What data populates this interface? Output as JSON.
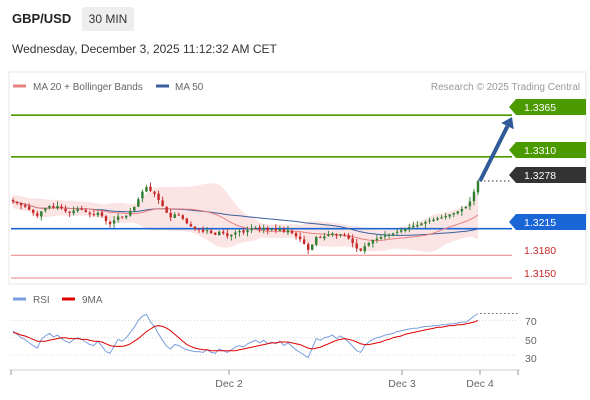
{
  "header": {
    "symbol": "GBP/USD",
    "timeframe": "30 MIN",
    "datetime": "Wednesday, December 3, 2025 11:12:32 AM CET",
    "credit": "Research © 2025 Trading Central"
  },
  "legend": {
    "ma20_bb": "MA 20 + Bollinger Bands",
    "ma50": "MA 50",
    "rsi": "RSI",
    "ma9": "9MA"
  },
  "colors": {
    "bollinger_fill": "#fbe4e4",
    "ma20": "#e88080",
    "ma50": "#3a5f9e",
    "bull_candle": "#2e7d32",
    "bear_candle": "#c62828",
    "resistance": "#4b9a00",
    "pivot": "#1a66d6",
    "support": "#e88080",
    "last_price": "#333333",
    "arrow": "#2f5a96",
    "rsi": "#7a9ee0",
    "rsi_ma9": "#e00000"
  },
  "chart_data": [
    {
      "type": "candlestick",
      "pair": "GBP/USD",
      "timeframe": "30 MIN",
      "x_tick_labels": [
        "Dec 2",
        "Dec 3",
        "Dec 4"
      ],
      "levels": [
        {
          "label": "1.3365",
          "value": 1.3365,
          "kind": "resistance-2"
        },
        {
          "label": "1.3310",
          "value": 1.331,
          "kind": "resistance-1"
        },
        {
          "label": "1.3278",
          "value": 1.3278,
          "kind": "last-price"
        },
        {
          "label": "1.3215",
          "value": 1.3215,
          "kind": "pivot"
        },
        {
          "label": "1.3180",
          "value": 1.318,
          "kind": "support-1"
        },
        {
          "label": "1.3150",
          "value": 1.315,
          "kind": "support-2"
        }
      ],
      "ylim": [
        1.3142,
        1.3385
      ],
      "outlook": "up",
      "closes": [
        1.3251,
        1.3249,
        1.3246,
        1.3244,
        1.324,
        1.3236,
        1.3232,
        1.3238,
        1.3242,
        1.3245,
        1.3243,
        1.3245,
        1.3242,
        1.3238,
        1.3236,
        1.3239,
        1.3241,
        1.324,
        1.3237,
        1.3234,
        1.3233,
        1.3236,
        1.3232,
        1.3225,
        1.3221,
        1.3226,
        1.3231,
        1.323,
        1.3232,
        1.3238,
        1.3244,
        1.3254,
        1.3264,
        1.327,
        1.3265,
        1.3261,
        1.3253,
        1.3245,
        1.3236,
        1.323,
        1.3234,
        1.3233,
        1.3228,
        1.3222,
        1.3218,
        1.3215,
        1.3214,
        1.3211,
        1.3213,
        1.3209,
        1.3207,
        1.3211,
        1.3209,
        1.3205,
        1.3207,
        1.321,
        1.3212,
        1.321,
        1.3213,
        1.3215,
        1.3216,
        1.3214,
        1.3216,
        1.3213,
        1.3215,
        1.3213,
        1.3215,
        1.3211,
        1.3213,
        1.3209,
        1.3205,
        1.3201,
        1.3195,
        1.3187,
        1.3194,
        1.3204,
        1.3203,
        1.3205,
        1.3207,
        1.3209,
        1.3206,
        1.3208,
        1.3206,
        1.3202,
        1.3196,
        1.3189,
        1.3186,
        1.3192,
        1.3196,
        1.32,
        1.3202,
        1.3204,
        1.3206,
        1.3207,
        1.3209,
        1.3211,
        1.3213,
        1.3215,
        1.3217,
        1.3219,
        1.322,
        1.3222,
        1.3224,
        1.3226,
        1.3227,
        1.3229,
        1.323,
        1.3232,
        1.3234,
        1.3236,
        1.3238,
        1.3241,
        1.3244,
        1.3251,
        1.3264,
        1.3278
      ]
    },
    {
      "type": "line",
      "title": "RSI",
      "y_tick_labels": [
        "70",
        "50",
        "30"
      ],
      "ylim": [
        15,
        82
      ],
      "series": [
        {
          "name": "RSI",
          "values": [
            58,
            54,
            50,
            48,
            44,
            41,
            38,
            48,
            52,
            55,
            51,
            53,
            49,
            46,
            44,
            48,
            50,
            48,
            45,
            42,
            41,
            46,
            40,
            34,
            32,
            40,
            48,
            46,
            50,
            56,
            62,
            70,
            75,
            77,
            68,
            63,
            54,
            47,
            40,
            37,
            42,
            41,
            38,
            36,
            35,
            34,
            34,
            33,
            36,
            33,
            32,
            37,
            35,
            33,
            36,
            39,
            41,
            39,
            43,
            45,
            47,
            44,
            47,
            43,
            45,
            43,
            46,
            41,
            44,
            40,
            36,
            33,
            30,
            27,
            38,
            49,
            47,
            50,
            51,
            53,
            49,
            52,
            49,
            45,
            40,
            35,
            33,
            41,
            45,
            48,
            50,
            51,
            53,
            54,
            55,
            57,
            58,
            59,
            60,
            61,
            61,
            62,
            63,
            63,
            64,
            64,
            65,
            65,
            66,
            66,
            67,
            68,
            68,
            71,
            75,
            78
          ]
        },
        {
          "name": "9MA",
          "values": [
            56,
            55,
            53,
            52,
            50,
            48,
            46,
            46,
            46,
            47,
            48,
            49,
            50,
            50,
            49,
            49,
            49,
            48,
            48,
            47,
            46,
            46,
            45,
            43,
            41,
            40,
            40,
            40,
            41,
            43,
            46,
            49,
            53,
            57,
            60,
            63,
            64,
            63,
            61,
            58,
            54,
            50,
            46,
            42,
            40,
            38,
            37,
            36,
            36,
            35,
            35,
            35,
            35,
            35,
            35,
            35,
            36,
            37,
            38,
            39,
            40,
            41,
            42,
            43,
            44,
            44,
            45,
            45,
            45,
            44,
            43,
            42,
            40,
            38,
            37,
            38,
            39,
            41,
            43,
            45,
            47,
            48,
            49,
            48,
            47,
            45,
            43,
            42,
            42,
            43,
            44,
            45,
            47,
            48,
            50,
            51,
            52,
            54,
            55,
            56,
            57,
            58,
            59,
            60,
            61,
            62,
            62,
            63,
            64,
            64,
            65,
            65,
            66,
            67,
            68,
            70
          ]
        }
      ]
    }
  ]
}
